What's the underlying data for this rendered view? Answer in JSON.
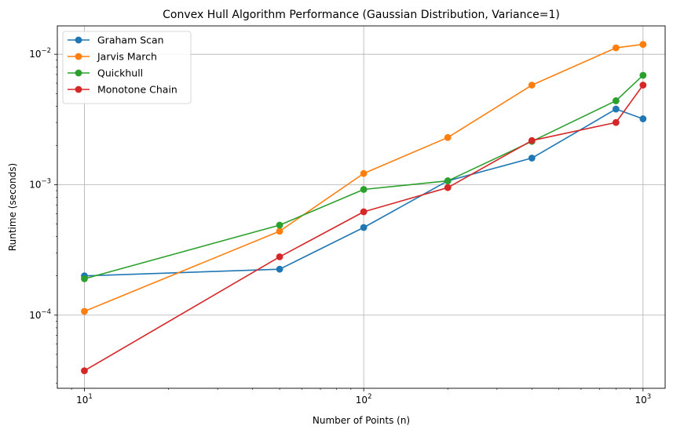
{
  "chart_data": {
    "type": "line",
    "title": "Convex Hull Algorithm Performance (Gaussian Distribution, Variance=1)",
    "xlabel": "Number of Points (n)",
    "ylabel": "Runtime (seconds)",
    "xscale": "log",
    "yscale": "log",
    "xlim": [
      8,
      1200
    ],
    "ylim": [
      2.75e-05,
      0.0165
    ],
    "x_ticks": [
      {
        "value": 10,
        "base": "10",
        "exp": "1"
      },
      {
        "value": 100,
        "base": "10",
        "exp": "2"
      },
      {
        "value": 1000,
        "base": "10",
        "exp": "3"
      }
    ],
    "y_ticks": [
      {
        "value": 0.0001,
        "base": "10",
        "exp": "−4"
      },
      {
        "value": 0.001,
        "base": "10",
        "exp": "−3"
      },
      {
        "value": 0.01,
        "base": "10",
        "exp": "−2"
      }
    ],
    "grid": true,
    "legend_position": "top-left",
    "x": [
      10,
      50,
      100,
      200,
      400,
      800,
      1000
    ],
    "series": [
      {
        "name": "Graham Scan",
        "color": "#1f77b4",
        "values": [
          0.0002,
          0.000225,
          0.00047,
          0.00107,
          0.0016,
          0.0038,
          0.0032
        ]
      },
      {
        "name": "Jarvis March",
        "color": "#ff7f0e",
        "values": [
          0.000107,
          0.00044,
          0.00122,
          0.0023,
          0.0058,
          0.0112,
          0.0119
        ]
      },
      {
        "name": "Quickhull",
        "color": "#2ca02c",
        "values": [
          0.00019,
          0.00049,
          0.00092,
          0.00107,
          0.00215,
          0.0044,
          0.0069
        ]
      },
      {
        "name": "Monotone Chain",
        "color": "#d62728",
        "values": [
          3.75e-05,
          0.00028,
          0.00062,
          0.00095,
          0.00218,
          0.003,
          0.0058
        ]
      }
    ]
  }
}
